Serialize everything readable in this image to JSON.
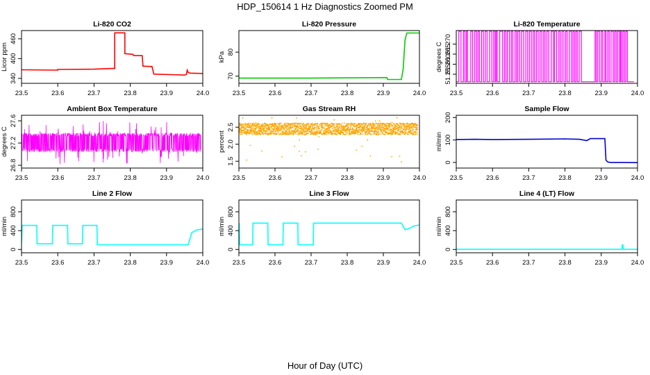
{
  "figure": {
    "title": "HDP_150614  1 Hz Diagnostics Zoomed PM",
    "xlabel": "Hour of Day (UTC)"
  },
  "chart_data": [
    {
      "type": "line",
      "title": "Li-820 CO2",
      "xlabel": "",
      "ylabel": "Licor ppm",
      "xlim": [
        23.5,
        24.0
      ],
      "ylim": [
        325,
        485
      ],
      "xticks": [
        "23.5",
        "23.6",
        "23.7",
        "23.8",
        "23.9",
        "24.0"
      ],
      "yticks": [
        "340",
        "400",
        "460"
      ],
      "grid": false,
      "color": "#ff0000",
      "series": [
        {
          "x": [
            23.5,
            23.6,
            23.6,
            23.7,
            23.75,
            23.757,
            23.757,
            23.785,
            23.785,
            23.807,
            23.81,
            23.833,
            23.835,
            23.86,
            23.865,
            23.95,
            23.955,
            23.957,
            23.96,
            23.965,
            24.0
          ],
          "y": [
            366,
            365,
            367,
            368,
            370,
            370,
            478,
            478,
            415,
            413,
            409,
            409,
            377,
            376,
            353,
            350,
            352,
            365,
            358,
            356,
            355
          ]
        }
      ]
    },
    {
      "type": "line",
      "title": "Li-820 Pressure",
      "xlabel": "",
      "ylabel": "kPa",
      "xlim": [
        23.5,
        24.0
      ],
      "ylim": [
        67,
        89
      ],
      "xticks": [
        "23.5",
        "23.6",
        "23.7",
        "23.8",
        "23.9",
        "24.0"
      ],
      "yticks": [
        "70",
        "80"
      ],
      "grid": false,
      "color": "#00cc00",
      "series": [
        {
          "x": [
            23.5,
            23.6,
            23.7,
            23.8,
            23.91,
            23.912,
            23.95,
            23.955,
            23.96,
            23.965,
            24.0
          ],
          "y": [
            69.2,
            69.2,
            69.2,
            69.3,
            69.4,
            68.6,
            68.6,
            73,
            85,
            88,
            88
          ]
        }
      ]
    },
    {
      "type": "line",
      "title": "Li-820 Temperature",
      "xlabel": "",
      "ylabel": "degrees C",
      "xlim": [
        23.5,
        24.0
      ],
      "ylim": [
        51.2505,
        51.2767
      ],
      "xticks": [
        "23.5",
        "23.6",
        "23.7",
        "23.8",
        "23.9",
        "24.0"
      ],
      "yticks": [
        "51.255",
        "51.260",
        "51.265",
        "51.270"
      ],
      "grid": false,
      "color": "#ff00ff",
      "levels": [
        51.2513,
        51.2764
      ],
      "toggle_x": [
        23.507,
        23.513,
        23.52,
        23.524,
        23.528,
        23.531,
        23.54,
        23.545,
        23.551,
        23.556,
        23.56,
        23.564,
        23.57,
        23.575,
        23.58,
        23.585,
        23.592,
        23.598,
        23.603,
        23.607,
        23.61,
        23.613,
        23.62,
        23.628,
        23.633,
        23.637,
        23.641,
        23.647,
        23.652,
        23.656,
        23.662,
        23.666,
        23.67,
        23.675,
        23.68,
        23.686,
        23.692,
        23.697,
        23.702,
        23.707,
        23.712,
        23.716,
        23.721,
        23.726,
        23.731,
        23.736,
        23.741,
        23.745,
        23.75,
        23.755,
        23.762,
        23.768,
        23.771,
        23.777,
        23.783,
        23.787,
        23.792,
        23.797,
        23.802,
        23.806,
        23.812,
        23.818,
        23.822,
        23.826,
        23.83,
        23.834,
        23.839,
        23.845,
        23.883,
        23.886,
        23.89,
        23.895,
        23.9,
        23.904,
        23.91,
        23.913,
        23.918,
        23.922,
        23.927,
        23.933,
        23.937,
        23.941,
        23.945,
        23.95,
        23.953,
        23.956,
        23.96,
        23.964,
        23.968,
        23.972
      ]
    },
    {
      "type": "line",
      "title": "Ambient Box Temperature",
      "xlabel": "",
      "ylabel": "degrees C",
      "xlim": [
        23.5,
        24.0
      ],
      "ylim": [
        26.75,
        27.7
      ],
      "xticks": [
        "23.5",
        "23.6",
        "23.7",
        "23.8",
        "23.9",
        "24.0"
      ],
      "yticks": [
        "26.8",
        "27.2",
        "27.6"
      ],
      "grid": false,
      "color": "#ff00ff",
      "band": {
        "low": 27.04,
        "high": 27.38,
        "min": 26.82,
        "max": 27.62
      }
    },
    {
      "type": "scatter",
      "title": "Gas Stream RH",
      "xlabel": "",
      "ylabel": "percent",
      "xlim": [
        23.5,
        24.0
      ],
      "ylim": [
        1.3,
        2.85
      ],
      "xticks": [
        "23.5",
        "23.6",
        "23.7",
        "23.8",
        "23.9",
        "24.0"
      ],
      "yticks": [
        "1.5",
        "2.0",
        "2.5"
      ],
      "grid": false,
      "color": "#ffa500",
      "band": {
        "low": 2.28,
        "high": 2.62,
        "min": 1.38,
        "max": 2.78
      }
    },
    {
      "type": "line",
      "title": "Sample Flow",
      "xlabel": "",
      "ylabel": "ml/min",
      "xlim": [
        23.5,
        24.0
      ],
      "ylim": [
        -25,
        210
      ],
      "xticks": [
        "23.5",
        "23.6",
        "23.7",
        "23.8",
        "23.9",
        "24.0"
      ],
      "yticks": [
        "0",
        "100",
        "200"
      ],
      "grid": false,
      "color": "#0000cc",
      "series": [
        {
          "x": [
            23.5,
            23.55,
            23.6,
            23.7,
            23.8,
            23.84,
            23.86,
            23.87,
            23.91,
            23.913,
            23.918,
            23.925,
            23.96,
            24.0
          ],
          "y": [
            102,
            103,
            102,
            103,
            105,
            103,
            97,
            106,
            106,
            10,
            2,
            0,
            0,
            -1
          ]
        }
      ]
    },
    {
      "type": "line",
      "title": "Line 2 Flow",
      "xlabel": "",
      "ylabel": "ml/min",
      "xlim": [
        23.5,
        24.0
      ],
      "ylim": [
        -70,
        1050
      ],
      "xticks": [
        "23.5",
        "23.6",
        "23.7",
        "23.8",
        "23.9",
        "24.0"
      ],
      "yticks": [
        "0",
        "400",
        "800"
      ],
      "grid": false,
      "color": "#00ffff",
      "series": [
        {
          "x": [
            23.5,
            23.502,
            23.542,
            23.543,
            23.585,
            23.586,
            23.627,
            23.628,
            23.668,
            23.669,
            23.708,
            23.709,
            23.96,
            23.97,
            23.985,
            24.0
          ],
          "y": [
            150,
            510,
            510,
            120,
            120,
            510,
            510,
            120,
            120,
            510,
            510,
            100,
            100,
            360,
            420,
            430
          ]
        }
      ]
    },
    {
      "type": "line",
      "title": "Line 3 Flow",
      "xlabel": "",
      "ylabel": "ml/min",
      "xlim": [
        23.5,
        24.0
      ],
      "ylim": [
        -70,
        1050
      ],
      "xticks": [
        "23.5",
        "23.6",
        "23.7",
        "23.8",
        "23.9",
        "24.0"
      ],
      "yticks": [
        "0",
        "400",
        "800"
      ],
      "grid": false,
      "color": "#00ffff",
      "series": [
        {
          "x": [
            23.5,
            23.501,
            23.502,
            23.538,
            23.539,
            23.58,
            23.581,
            23.622,
            23.623,
            23.663,
            23.664,
            23.706,
            23.707,
            23.95,
            23.96,
            23.97,
            23.985,
            24.0
          ],
          "y": [
            550,
            550,
            100,
            100,
            560,
            560,
            100,
            100,
            560,
            560,
            100,
            100,
            560,
            560,
            420,
            440,
            500,
            520
          ]
        }
      ]
    },
    {
      "type": "line",
      "title": "Line 4 (LT) Flow",
      "xlabel": "",
      "ylabel": "ml/min",
      "xlim": [
        23.5,
        24.0
      ],
      "ylim": [
        -70,
        1050
      ],
      "xticks": [
        "23.5",
        "23.6",
        "23.7",
        "23.8",
        "23.9",
        "24.0"
      ],
      "yticks": [
        "0",
        "400",
        "800"
      ],
      "grid": false,
      "color": "#00ffff",
      "series": [
        {
          "x": [
            23.5,
            23.7,
            23.9,
            23.957,
            23.958,
            23.96,
            23.961,
            24.0
          ],
          "y": [
            5,
            5,
            5,
            5,
            100,
            100,
            5,
            5
          ]
        }
      ]
    }
  ]
}
